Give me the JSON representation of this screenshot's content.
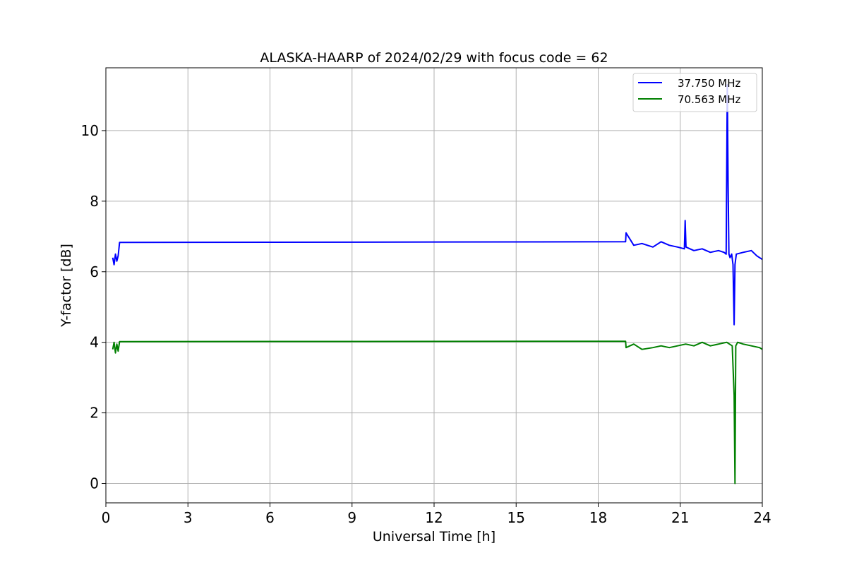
{
  "chart_data": {
    "type": "line",
    "title": "ALASKA-HAARP of 2024/02/29 with focus code = 62",
    "xlabel": "Universal Time [h]",
    "ylabel": "Y-factor [dB]",
    "xlim": [
      0,
      24
    ],
    "ylim": [
      -0.55,
      11.78
    ],
    "xticks": [
      0,
      3,
      6,
      9,
      12,
      15,
      18,
      21,
      24
    ],
    "xtick_labels": [
      "0",
      "3",
      "6",
      "9",
      "12",
      "15",
      "18",
      "21",
      "24"
    ],
    "yticks": [
      0,
      2,
      4,
      6,
      8,
      10
    ],
    "ytick_labels": [
      "0",
      "2",
      "4",
      "6",
      "8",
      "10"
    ],
    "grid": true,
    "legend_position": "top-right",
    "series": [
      {
        "name": "37.750 MHz",
        "color": "#0000ff",
        "x": [
          0.25,
          0.3,
          0.35,
          0.4,
          0.45,
          0.5,
          19.0,
          19.02,
          19.3,
          19.6,
          20.0,
          20.3,
          20.6,
          20.9,
          21.15,
          21.18,
          21.21,
          21.5,
          21.8,
          22.1,
          22.4,
          22.6,
          22.68,
          22.72,
          22.75,
          22.78,
          22.82,
          22.88,
          22.93,
          22.97,
          23.0,
          23.05,
          23.3,
          23.6,
          23.8,
          24.0
        ],
        "y": [
          6.4,
          6.2,
          6.5,
          6.3,
          6.45,
          6.83,
          6.85,
          7.1,
          6.75,
          6.8,
          6.7,
          6.85,
          6.75,
          6.7,
          6.65,
          7.45,
          6.7,
          6.6,
          6.65,
          6.55,
          6.6,
          6.55,
          6.5,
          11.3,
          8.4,
          6.5,
          6.4,
          6.5,
          6.2,
          4.5,
          6.2,
          6.5,
          6.55,
          6.6,
          6.45,
          6.35
        ]
      },
      {
        "name": "70.563 MHz",
        "color": "#008000",
        "x": [
          0.25,
          0.3,
          0.35,
          0.4,
          0.45,
          0.5,
          19.0,
          19.02,
          19.3,
          19.6,
          20.0,
          20.3,
          20.6,
          20.9,
          21.2,
          21.5,
          21.8,
          22.1,
          22.4,
          22.7,
          22.9,
          22.95,
          22.97,
          23.0,
          23.03,
          23.1,
          23.3,
          23.6,
          23.9,
          24.0
        ],
        "y": [
          3.8,
          4.0,
          3.7,
          3.95,
          3.75,
          4.02,
          4.03,
          3.85,
          3.95,
          3.8,
          3.85,
          3.9,
          3.85,
          3.9,
          3.95,
          3.9,
          4.0,
          3.9,
          3.95,
          4.0,
          3.9,
          2.9,
          2.5,
          0.0,
          3.9,
          4.0,
          3.95,
          3.9,
          3.85,
          3.8
        ]
      }
    ]
  }
}
